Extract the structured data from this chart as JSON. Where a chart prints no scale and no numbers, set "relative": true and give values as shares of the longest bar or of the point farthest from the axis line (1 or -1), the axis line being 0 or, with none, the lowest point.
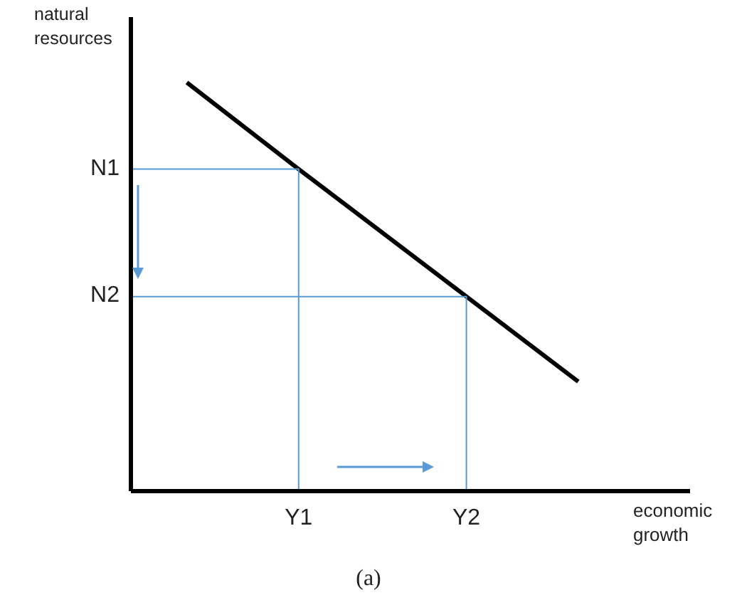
{
  "chart_data": {
    "type": "line",
    "relative": true,
    "xlabel": "economic growth",
    "ylabel": "natural resources",
    "annotations": [
      "N1",
      "N2",
      "(a)"
    ],
    "categories": [
      null,
      null,
      null,
      "Y1",
      null,
      null,
      "Y2",
      null,
      null,
      null,
      null
    ],
    "marker": "none",
    "line_style": "solid",
    "series": [
      {
        "values": [
          null,
          1,
          null,
          0.788,
          null,
          null,
          0.476,
          null,
          0.268,
          null,
          null
        ],
        "color": "#000000"
      },
      {
        "type": "step",
        "values": [
          0.788,
          0.788,
          0.788,
          0,
          null,
          null,
          null,
          null,
          null,
          null,
          null
        ],
        "color": "#5b9bd5"
      },
      {
        "type": "step",
        "values": [
          0.476,
          0.476,
          0.476,
          0.476,
          0.476,
          0.476,
          0,
          null,
          null,
          null,
          null
        ],
        "color": "#5b9bd5"
      }
    ]
  }
}
